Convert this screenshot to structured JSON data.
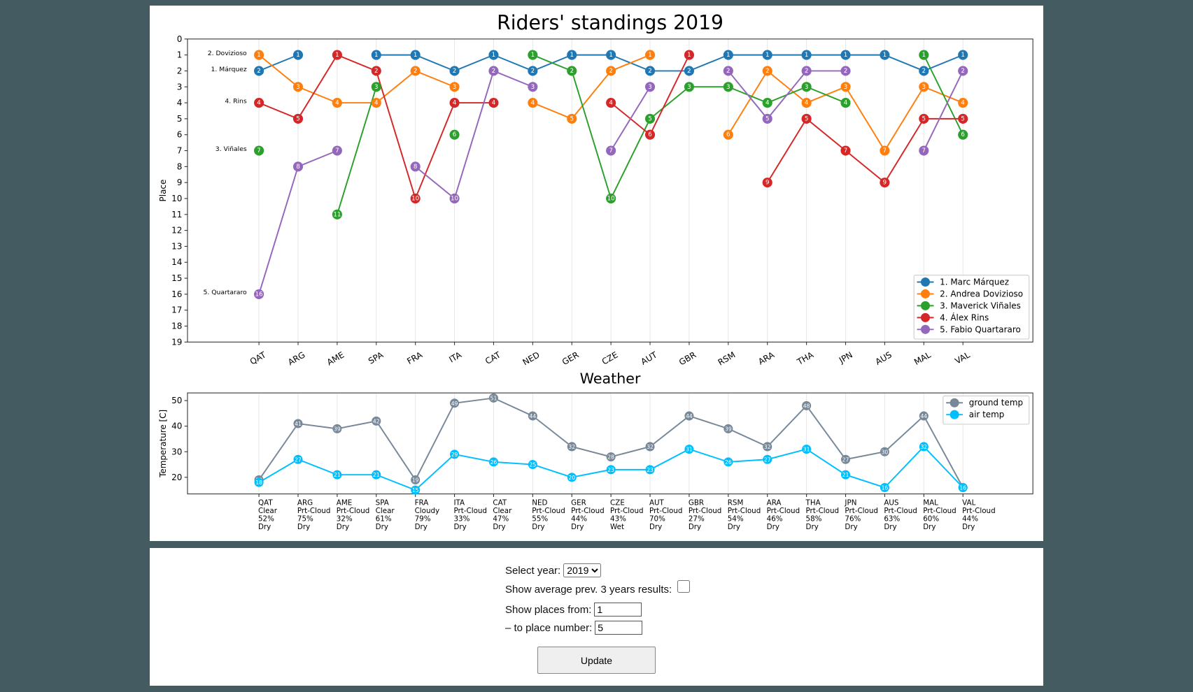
{
  "chart_data": [
    {
      "type": "line",
      "title": "Riders' standings 2019",
      "ylabel": "Place",
      "categories": [
        "QAT",
        "ARG",
        "AME",
        "SPA",
        "FRA",
        "ITA",
        "CAT",
        "NED",
        "GER",
        "CZE",
        "AUT",
        "GBR",
        "RSM",
        "ARA",
        "THA",
        "JPN",
        "AUS",
        "MAL",
        "VAL"
      ],
      "ylim": [
        0,
        19
      ],
      "yticks": [
        0,
        1,
        2,
        3,
        4,
        5,
        6,
        7,
        8,
        9,
        10,
        11,
        12,
        13,
        14,
        15,
        16,
        17,
        18,
        19
      ],
      "y_inverted": true,
      "grid": "x",
      "legend": "lower right",
      "point_labels": true,
      "series": [
        {
          "name": "1. Marc Márquez",
          "label": "1. Márquez",
          "color": "#1f77b4",
          "values": [
            2,
            1,
            null,
            1,
            1,
            2,
            1,
            2,
            1,
            1,
            2,
            2,
            1,
            1,
            1,
            1,
            1,
            2,
            1
          ]
        },
        {
          "name": "2. Andrea Dovizioso",
          "label": "2. Dovizioso",
          "color": "#ff7f0e",
          "values": [
            1,
            3,
            4,
            4,
            2,
            3,
            null,
            4,
            5,
            2,
            1,
            null,
            6,
            2,
            4,
            3,
            7,
            3,
            4
          ]
        },
        {
          "name": "3. Maverick Viñales",
          "label": "3. Viñales",
          "color": "#2ca02c",
          "values": [
            7,
            null,
            11,
            3,
            null,
            6,
            null,
            1,
            2,
            10,
            5,
            3,
            3,
            4,
            3,
            4,
            null,
            1,
            6
          ]
        },
        {
          "name": "4. Álex Rins",
          "label": "4. Rins",
          "color": "#d62728",
          "values": [
            4,
            5,
            1,
            2,
            10,
            4,
            4,
            null,
            null,
            4,
            6,
            1,
            null,
            9,
            5,
            7,
            9,
            5,
            5
          ]
        },
        {
          "name": "5. Fabio Quartararo",
          "label": "5. Quartararo",
          "color": "#9467bd",
          "values": [
            16,
            8,
            7,
            null,
            8,
            10,
            2,
            3,
            null,
            7,
            3,
            null,
            2,
            5,
            2,
            2,
            null,
            7,
            2
          ]
        }
      ]
    },
    {
      "type": "line",
      "title": "Weather",
      "ylabel": "Temperature [C]",
      "categories": [
        "QAT",
        "ARG",
        "AME",
        "SPA",
        "FRA",
        "ITA",
        "CAT",
        "NED",
        "GER",
        "CZE",
        "AUT",
        "GBR",
        "RSM",
        "ARA",
        "THA",
        "JPN",
        "AUS",
        "MAL",
        "VAL"
      ],
      "sky": [
        "Clear",
        "Prt-Cloud",
        "Prt-Cloud",
        "Clear",
        "Cloudy",
        "Prt-Cloud",
        "Clear",
        "Prt-Cloud",
        "Prt-Cloud",
        "Prt-Cloud",
        "Prt-Cloud",
        "Prt-Cloud",
        "Prt-Cloud",
        "Prt-Cloud",
        "Prt-Cloud",
        "Prt-Cloud",
        "Prt-Cloud",
        "Prt-Cloud",
        "Prt-Cloud"
      ],
      "humidity": [
        "52%",
        "75%",
        "32%",
        "61%",
        "79%",
        "33%",
        "47%",
        "55%",
        "44%",
        "43%",
        "70%",
        "27%",
        "54%",
        "46%",
        "58%",
        "76%",
        "63%",
        "60%",
        "44%"
      ],
      "track": [
        "Dry",
        "Dry",
        "Dry",
        "Dry",
        "Dry",
        "Dry",
        "Dry",
        "Dry",
        "Dry",
        "Wet",
        "Dry",
        "Dry",
        "Dry",
        "Dry",
        "Dry",
        "Dry",
        "Dry",
        "Dry",
        "Dry"
      ],
      "ylim": [
        13.5,
        53
      ],
      "yticks": [
        20,
        30,
        40,
        50
      ],
      "y_inverted": false,
      "grid": "x",
      "legend": "upper right",
      "point_labels": true,
      "series": [
        {
          "name": "ground temp",
          "color": "#778899",
          "values": [
            19,
            41,
            39,
            42,
            19,
            49,
            51,
            44,
            32,
            28,
            32,
            44,
            39,
            32,
            48,
            27,
            30,
            44,
            16
          ]
        },
        {
          "name": "air temp",
          "color": "#00bfff",
          "values": [
            18,
            27,
            21,
            21,
            15,
            29,
            26,
            25,
            20,
            23,
            23,
            31,
            26,
            27,
            31,
            21,
            16,
            32,
            16
          ]
        }
      ]
    }
  ],
  "form": {
    "year_label": "Select year:",
    "year_options": [
      "2019"
    ],
    "average_label": "Show average prev. 3 years results:",
    "from_label": "Show places from:",
    "from_value": "1",
    "to_label": "– to place number:",
    "to_value": "5",
    "button": "Update"
  }
}
